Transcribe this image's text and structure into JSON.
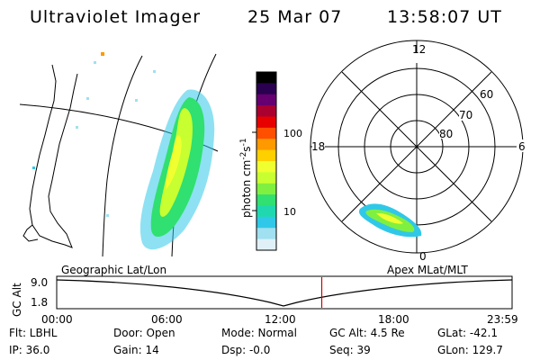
{
  "header": {
    "instrument": "Ultraviolet Imager",
    "date": "25 Mar 07",
    "time": "13:58:07 UT"
  },
  "colorbar": {
    "label": "photon cm",
    "label_exp1": "-2",
    "label_mid": "s",
    "label_exp2": "-1",
    "ticks": [
      "100",
      "10"
    ],
    "tick_values": [
      100,
      10
    ],
    "colors": [
      "#000000",
      "#2a0050",
      "#660070",
      "#aa0030",
      "#e60000",
      "#ff5000",
      "#ff9900",
      "#ffd000",
      "#f0ff30",
      "#c8ff30",
      "#80f040",
      "#30e070",
      "#20d8b0",
      "#30c8e8",
      "#a0e0f0",
      "#e0f0f8"
    ]
  },
  "polar": {
    "mlt_labels": [
      "12",
      "18",
      "6",
      "0"
    ],
    "lat_labels": [
      "60",
      "70",
      "80"
    ]
  },
  "timeline": {
    "left_title": "Geographic Lat/Lon",
    "right_title": "Apex MLat/MLT",
    "axis_label": "GC Alt",
    "y_ticks": [
      "9.0",
      "1.8"
    ],
    "x_ticks": [
      "00:00",
      "06:00",
      "12:00",
      "18:00",
      "23:59"
    ],
    "current_time_hours": 13.97,
    "marker_color": "#cc0000"
  },
  "info": {
    "row1": [
      "Flt: LBHL",
      "Door: Open",
      "Mode: Normal",
      "GC Alt: 4.5 Re",
      "GLat: -42.1"
    ],
    "row2": [
      "IP: 36.0",
      "Gain: 14",
      "Dsp:   -0.0",
      "Seq: 39",
      "GLon: 129.7"
    ]
  }
}
